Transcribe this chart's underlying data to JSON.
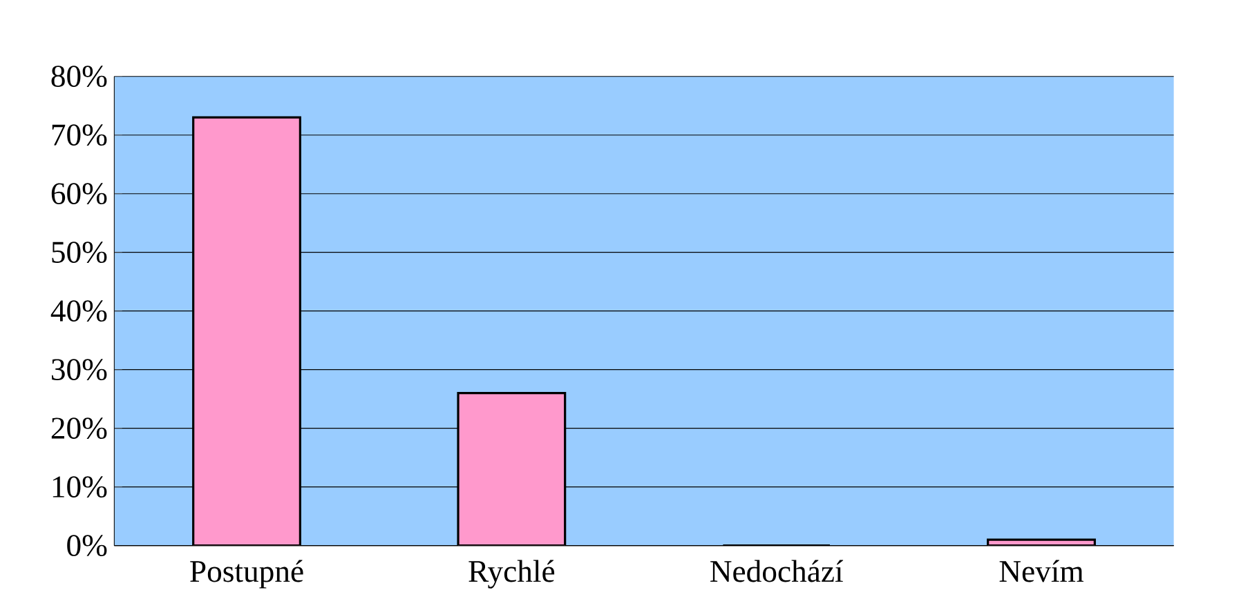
{
  "chart_data": {
    "type": "bar",
    "categories": [
      "Postupné",
      "Rychlé",
      "Nedochází",
      "Nevím"
    ],
    "values": [
      73,
      26,
      0,
      1
    ],
    "color": "#ff99cc",
    "ylim": [
      0,
      80
    ],
    "yticks": [
      {
        "value": 0,
        "label": "0%"
      },
      {
        "value": 10,
        "label": "10%"
      },
      {
        "value": 20,
        "label": "20%"
      },
      {
        "value": 30,
        "label": "30%"
      },
      {
        "value": 40,
        "label": "40%"
      },
      {
        "value": 50,
        "label": "50%"
      },
      {
        "value": 60,
        "label": "60%"
      },
      {
        "value": 70,
        "label": "70%"
      },
      {
        "value": 80,
        "label": "80%"
      }
    ],
    "grid": "y"
  }
}
